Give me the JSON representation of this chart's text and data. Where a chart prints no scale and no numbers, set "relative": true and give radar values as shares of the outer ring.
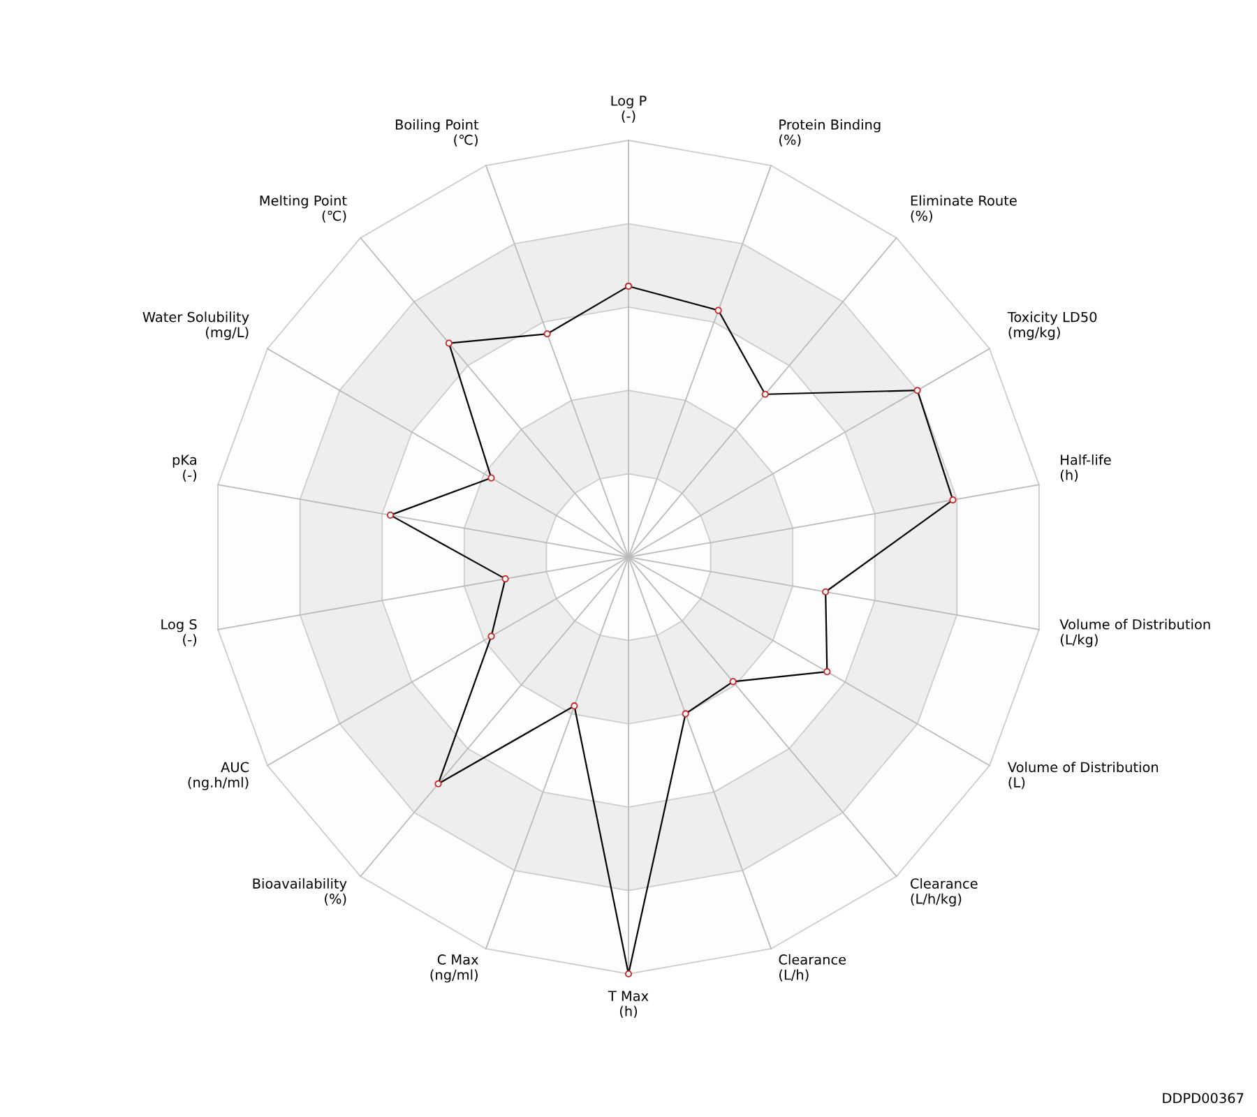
{
  "chart_data": {
    "type": "radar",
    "relative": true,
    "marker": "circle",
    "line_style": "solid",
    "categories": [
      "Log P\n(-)",
      "Protein Binding\n(%)",
      "Eliminate Route\n(%)",
      "Toxicity LD50\n(mg/kg)",
      "Half-life\n(h)",
      "Volume of Distribution\n(L/kg)",
      "Volume of Distribution\n(L)",
      "Clearance\n(L/h/kg)",
      "Clearance\n(L/h)",
      "T Max\n(h)",
      "C Max\n(ng/ml)",
      "Bioavailability\n(%)",
      "AUC\n(ng.h/ml)",
      "Log S\n(-)",
      "pKa\n(-)",
      "Water Solubility\n(mg/L)",
      "Melting Point\n(℃)",
      "Boiling Point\n(℃)"
    ],
    "series": [
      {
        "color": "#000000",
        "values": [
          0.65,
          0.63,
          0.51,
          0.8,
          0.79,
          0.48,
          0.55,
          0.39,
          0.4,
          1.0,
          0.38,
          0.71,
          0.38,
          0.3,
          0.58,
          0.38,
          0.67,
          0.57
        ]
      }
    ],
    "annotations": [
      "DDPD00367"
    ]
  }
}
